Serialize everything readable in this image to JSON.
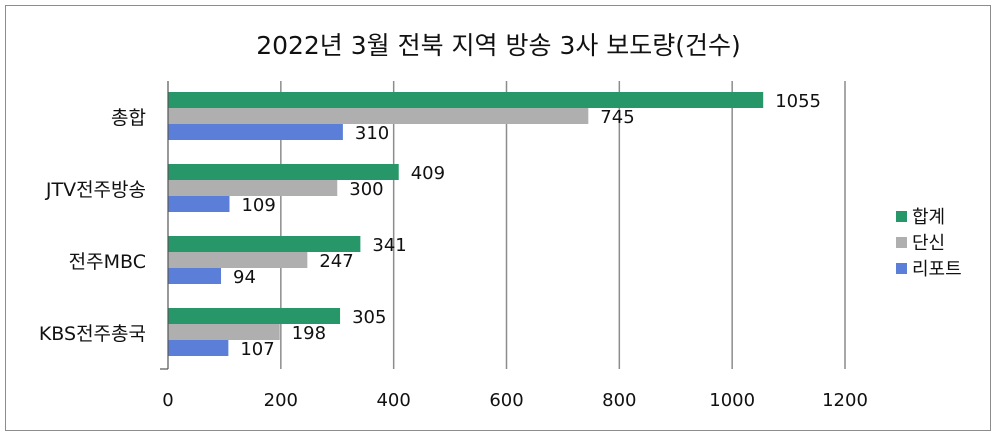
{
  "chart_data": {
    "type": "bar",
    "orientation": "horizontal",
    "title": "2022년 3월 전북 지역 방송 3사 보도량(건수)",
    "xlabel": "",
    "ylabel": "",
    "xlim": [
      0,
      1200
    ],
    "xticks": [
      "0",
      "200",
      "400",
      "600",
      "800",
      "1000",
      "1200"
    ],
    "grid": "vertical",
    "legend_position": "right",
    "categories": [
      "총합",
      "JTV전주방송",
      "전주MBC",
      "KBS전주총국"
    ],
    "series": [
      {
        "name": "합계",
        "color": "#27976a",
        "values": [
          1055,
          409,
          341,
          305
        ]
      },
      {
        "name": "단신",
        "color": "#afafaf",
        "values": [
          745,
          300,
          247,
          198
        ]
      },
      {
        "name": "리포트",
        "color": "#5b7fd8",
        "values": [
          310,
          109,
          94,
          107
        ]
      }
    ]
  }
}
